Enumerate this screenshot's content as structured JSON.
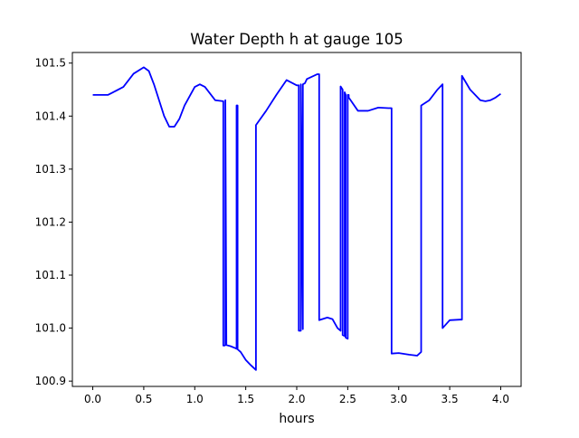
{
  "chart_data": {
    "type": "line",
    "title": "Water Depth h at gauge 105",
    "xlabel": "hours",
    "ylabel": "",
    "xlim": [
      -0.2,
      4.2
    ],
    "ylim": [
      100.89,
      101.52
    ],
    "xticks": [
      0.0,
      0.5,
      1.0,
      1.5,
      2.0,
      2.5,
      3.0,
      3.5,
      4.0
    ],
    "xtick_labels": [
      "0.0",
      "0.5",
      "1.0",
      "1.5",
      "2.0",
      "2.5",
      "3.0",
      "3.5",
      "4.0"
    ],
    "yticks": [
      100.9,
      101.0,
      101.1,
      101.2,
      101.3,
      101.4,
      101.5
    ],
    "ytick_labels": [
      "100.9",
      "101.0",
      "101.1",
      "101.2",
      "101.3",
      "101.4",
      "101.5"
    ],
    "grid": false,
    "series": [
      {
        "color": "#0000ff",
        "x": [
          0.0,
          0.15,
          0.2,
          0.3,
          0.4,
          0.5,
          0.55,
          0.6,
          0.7,
          0.75,
          0.8,
          0.85,
          0.9,
          1.0,
          1.05,
          1.1,
          1.2,
          1.28,
          1.28,
          1.29,
          1.3,
          1.3,
          1.31,
          1.35,
          1.4,
          1.41,
          1.41,
          1.42,
          1.42,
          1.45,
          1.5,
          1.55,
          1.6,
          1.6,
          1.7,
          1.8,
          1.9,
          2.0,
          2.02,
          2.02,
          2.04,
          2.04,
          2.06,
          2.06,
          2.08,
          2.1,
          2.2,
          2.22,
          2.22,
          2.3,
          2.35,
          2.4,
          2.43,
          2.43,
          2.45,
          2.45,
          2.47,
          2.47,
          2.48,
          2.48,
          2.5,
          2.5,
          2.51,
          2.51,
          2.6,
          2.7,
          2.8,
          2.9,
          2.93,
          2.93,
          3.0,
          3.1,
          3.18,
          3.22,
          3.22,
          3.3,
          3.38,
          3.43,
          3.43,
          3.5,
          3.6,
          3.62,
          3.62,
          3.7,
          3.8,
          3.85,
          3.9,
          3.95,
          4.0
        ],
        "y": [
          101.44,
          101.44,
          101.445,
          101.455,
          101.48,
          101.492,
          101.485,
          101.46,
          101.4,
          101.38,
          101.38,
          101.395,
          101.42,
          101.455,
          101.46,
          101.455,
          101.43,
          101.428,
          100.967,
          100.967,
          100.968,
          101.43,
          100.968,
          100.966,
          100.962,
          100.961,
          101.42,
          101.42,
          100.96,
          100.955,
          100.94,
          100.93,
          100.921,
          101.383,
          101.41,
          101.44,
          101.468,
          101.458,
          101.458,
          100.995,
          100.995,
          101.46,
          100.998,
          101.46,
          101.462,
          101.47,
          101.479,
          101.479,
          101.015,
          101.02,
          101.017,
          101.0,
          100.995,
          101.456,
          101.45,
          100.987,
          100.985,
          101.445,
          101.44,
          100.982,
          100.98,
          101.44,
          101.44,
          101.435,
          101.41,
          101.41,
          101.416,
          101.415,
          101.415,
          100.952,
          100.953,
          100.95,
          100.948,
          100.955,
          101.42,
          101.43,
          101.45,
          101.46,
          101.0,
          101.015,
          101.016,
          101.016,
          101.476,
          101.45,
          101.43,
          101.428,
          101.43,
          101.435,
          101.442
        ]
      }
    ]
  }
}
